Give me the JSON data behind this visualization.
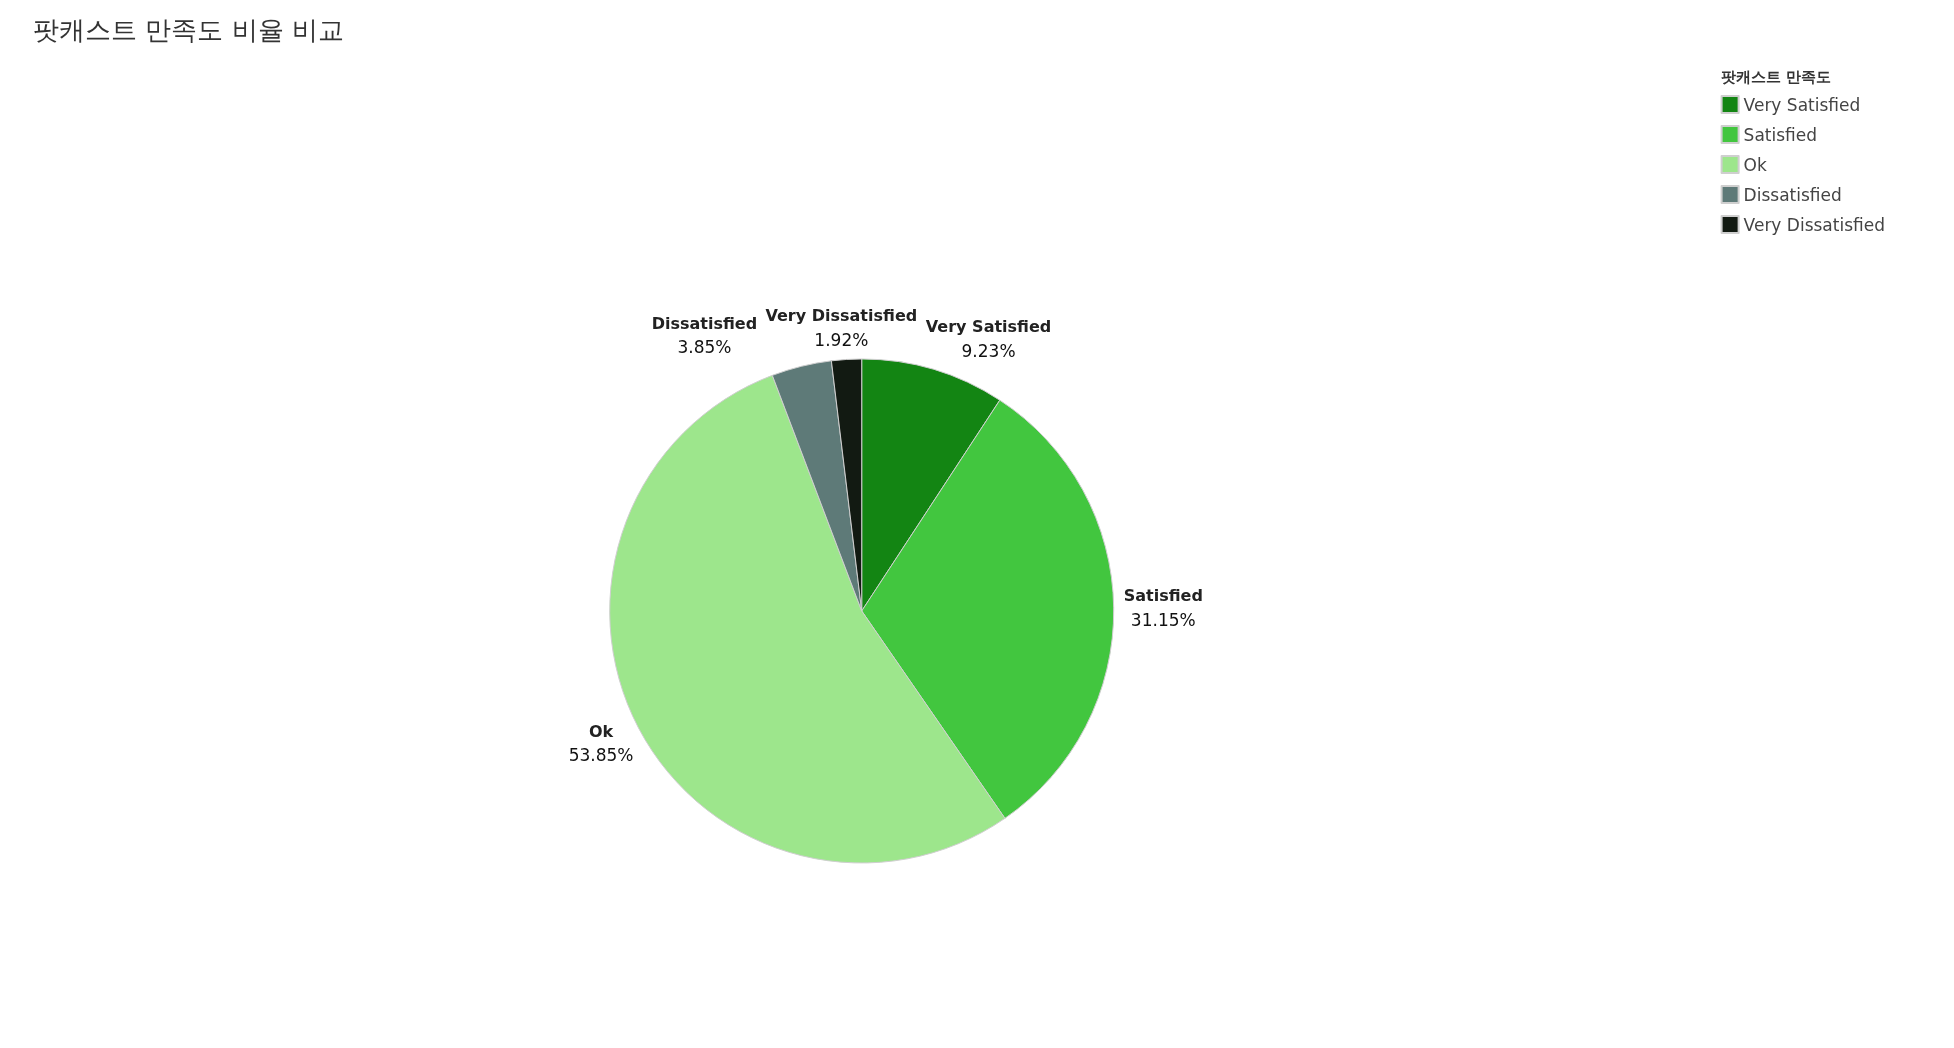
{
  "chart_data": {
    "type": "pie",
    "title": "팟캐스트 만족도 비율 비교",
    "legend_title": "팟캐스트 만족도",
    "categories": [
      "Very Satisfied",
      "Satisfied",
      "Ok",
      "Dissatisfied",
      "Very Dissatisfied"
    ],
    "values": [
      9.23,
      31.15,
      53.85,
      3.85,
      1.92
    ],
    "colors": [
      "#138513",
      "#42c63f",
      "#9de68c",
      "#5e7a78",
      "#121a12"
    ],
    "value_labels": [
      "9.23%",
      "31.15%",
      "53.85%",
      "3.85%",
      "1.92%"
    ],
    "legend": "top right"
  }
}
